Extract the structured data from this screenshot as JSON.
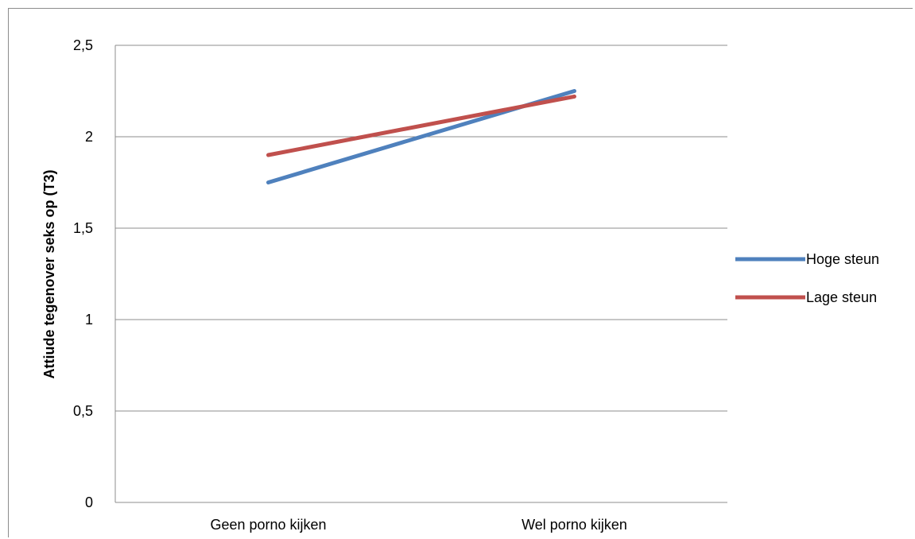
{
  "chart_data": {
    "type": "line",
    "title": "",
    "xlabel": "",
    "ylabel": "Attiude tegenover seks op (T3)",
    "categories": [
      "Geen porno kijken",
      "Wel porno kijken"
    ],
    "ylim": [
      0,
      2.5
    ],
    "yticks": [
      0,
      0.5,
      1,
      1.5,
      2,
      2.5
    ],
    "ytick_labels": [
      "0",
      "0,5",
      "1",
      "1,5",
      "2",
      "2,5"
    ],
    "grid": true,
    "legend": "right",
    "series": [
      {
        "name": "Hoge steun",
        "values": [
          1.75,
          2.25
        ],
        "color": "#4f81bd"
      },
      {
        "name": "Lage steun",
        "values": [
          1.9,
          2.22
        ],
        "color": "#c0504d"
      }
    ]
  }
}
